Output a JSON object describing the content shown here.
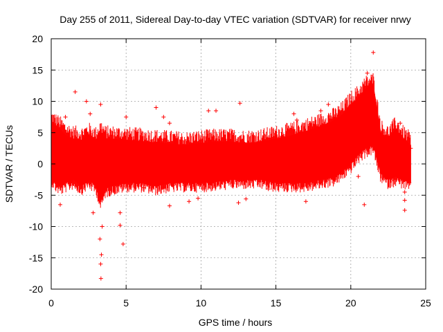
{
  "chart_data": {
    "type": "scatter",
    "marker": "+",
    "title": "Day 255 of 2011, Sidereal Day-to-day VTEC variation (SDTVAR) for receiver nrwy",
    "xlabel": "GPS time / hours",
    "ylabel": "SDTVAR / TECUs",
    "xlim": [
      0,
      25
    ],
    "ylim": [
      -20,
      20
    ],
    "xticks": [
      0,
      5,
      10,
      15,
      20,
      25
    ],
    "yticks": [
      -20,
      -15,
      -10,
      -5,
      0,
      5,
      10,
      15,
      20
    ],
    "grid": true,
    "color": "#ff0000",
    "series": [
      {
        "name": "nrwy",
        "envelope": {
          "description": "dense band of points; upper and lower bounds (TECU) vs GPS time (hours)",
          "x": [
            0.0,
            0.3,
            0.6,
            1.0,
            1.5,
            2.0,
            2.5,
            3.0,
            3.3,
            3.6,
            4.0,
            5.0,
            6.0,
            7.0,
            8.0,
            9.0,
            10.0,
            11.0,
            12.0,
            13.0,
            14.0,
            15.0,
            16.0,
            17.0,
            18.0,
            19.0,
            19.5,
            20.0,
            20.5,
            21.0,
            21.5,
            22.0,
            22.5,
            23.0,
            23.5,
            24.0
          ],
          "upper": [
            6.5,
            6.0,
            5.5,
            4.5,
            4.0,
            3.8,
            4.5,
            3.8,
            5.0,
            4.0,
            4.0,
            3.8,
            3.6,
            3.4,
            3.2,
            3.0,
            3.3,
            3.5,
            3.5,
            3.3,
            3.5,
            4.0,
            4.5,
            5.2,
            6.0,
            7.0,
            8.0,
            9.5,
            10.5,
            12.0,
            12.5,
            5.0,
            4.0,
            5.5,
            4.0,
            3.0
          ],
          "lower": [
            -2.0,
            -3.0,
            -3.5,
            -3.0,
            -2.5,
            -3.5,
            -2.5,
            -3.5,
            -6.0,
            -4.0,
            -3.5,
            -3.0,
            -3.0,
            -3.5,
            -3.0,
            -3.0,
            -3.0,
            -2.8,
            -2.5,
            -2.5,
            -2.5,
            -3.0,
            -3.0,
            -3.0,
            -2.5,
            -2.0,
            -1.0,
            0.0,
            1.5,
            2.5,
            3.0,
            -1.5,
            -2.5,
            -2.0,
            -2.5,
            -3.0
          ]
        },
        "points": [
          [
            1.6,
            11.5
          ],
          [
            2.35,
            10.0
          ],
          [
            2.6,
            8.0
          ],
          [
            3.3,
            9.5
          ],
          [
            3.25,
            -12.0
          ],
          [
            3.3,
            -16.0
          ],
          [
            3.32,
            -18.3
          ],
          [
            3.35,
            -14.5
          ],
          [
            3.4,
            -10.0
          ],
          [
            4.6,
            -7.8
          ],
          [
            4.6,
            -9.8
          ],
          [
            4.8,
            -12.8
          ],
          [
            0.6,
            -6.5
          ],
          [
            0.95,
            7.5
          ],
          [
            2.8,
            -7.8
          ],
          [
            5.0,
            7.5
          ],
          [
            7.0,
            9.0
          ],
          [
            7.5,
            7.5
          ],
          [
            7.9,
            6.5
          ],
          [
            7.9,
            -6.7
          ],
          [
            9.2,
            -6.0
          ],
          [
            9.8,
            -5.5
          ],
          [
            10.5,
            8.5
          ],
          [
            11.0,
            8.5
          ],
          [
            12.6,
            9.7
          ],
          [
            12.5,
            -6.2
          ],
          [
            13.0,
            -5.6
          ],
          [
            15.2,
            -3.5
          ],
          [
            16.2,
            8.0
          ],
          [
            16.4,
            7.0
          ],
          [
            18.0,
            8.5
          ],
          [
            18.5,
            9.5
          ],
          [
            20.5,
            -2.0
          ],
          [
            20.9,
            -6.5
          ],
          [
            21.5,
            17.8
          ],
          [
            21.1,
            14.5
          ],
          [
            22.8,
            -1.5
          ],
          [
            23.6,
            -4.5
          ],
          [
            23.6,
            -5.8
          ],
          [
            23.6,
            -7.4
          ],
          [
            23.3,
            6.5
          ],
          [
            24.0,
            2.5
          ],
          [
            23.9,
            -3.0
          ],
          [
            17.0,
            -6.0
          ],
          [
            0.5,
            5.5
          ],
          [
            6.2,
            -3.8
          ],
          [
            14.5,
            -4.0
          ]
        ]
      }
    ]
  }
}
